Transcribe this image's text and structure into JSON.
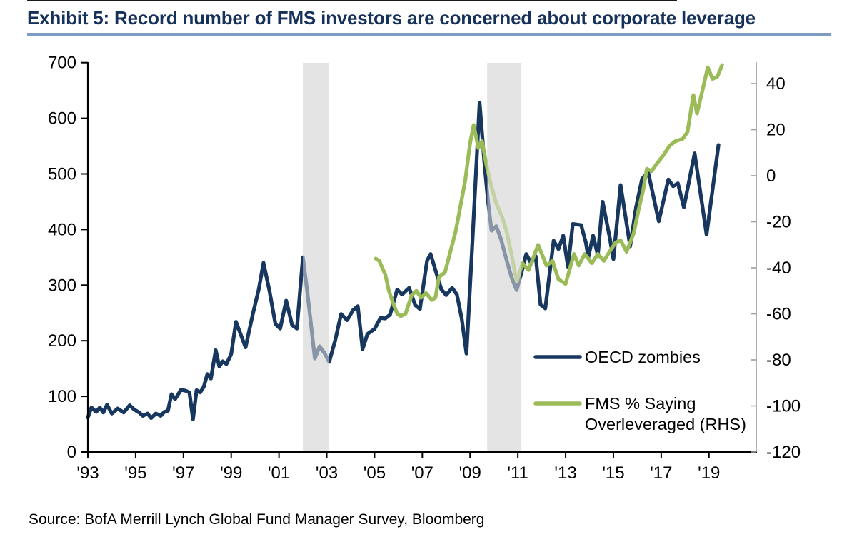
{
  "page": {
    "title": "Exhibit 5: Record number of FMS investors are concerned about corporate leverage",
    "source": "Source: BofA Merrill Lynch Global Fund Manager Survey, Bloomberg",
    "colors": {
      "background": "#FFFFFF",
      "title_text": "#17325A",
      "title_underline": "#7C9CC4",
      "top_rule": "#1A1A1A"
    }
  },
  "chart_data": {
    "type": "line",
    "title": "Exhibit 5: Record number of FMS investors are concerned about corporate leverage",
    "x_axis": {
      "range": [
        1993,
        2020.98
      ],
      "ticks": [
        {
          "year": 1993,
          "label": "'93"
        },
        {
          "year": 1995,
          "label": "'95"
        },
        {
          "year": 1997,
          "label": "'97"
        },
        {
          "year": 1999,
          "label": "'99"
        },
        {
          "year": 2001,
          "label": "'01"
        },
        {
          "year": 2003,
          "label": "'03"
        },
        {
          "year": 2005,
          "label": "'05"
        },
        {
          "year": 2007,
          "label": "'07"
        },
        {
          "year": 2009,
          "label": "'09"
        },
        {
          "year": 2011,
          "label": "'11"
        },
        {
          "year": 2013,
          "label": "'13"
        },
        {
          "year": 2015,
          "label": "'15"
        },
        {
          "year": 2017,
          "label": "'17"
        },
        {
          "year": 2019,
          "label": "'19"
        }
      ]
    },
    "left_axis": {
      "range": [
        0,
        700
      ],
      "ticks": [
        700,
        600,
        500,
        400,
        300,
        200,
        100,
        0
      ]
    },
    "right_axis": {
      "range": [
        -120,
        40
      ],
      "ticks": [
        40,
        20,
        0,
        -20,
        -40,
        -60,
        -80,
        -100,
        -120
      ]
    },
    "grid": false,
    "recession_bands": [
      {
        "from_year": 2002.0,
        "to_year": 2003.1
      },
      {
        "from_year": 2009.72,
        "to_year": 2011.15
      }
    ],
    "band_color": "#E4E4E4",
    "band_overlay_opacity": 0.55,
    "axis_colors": {
      "left": "#000000",
      "bottom": "#000000",
      "right": "#9C9C9C",
      "labels": "#000000"
    },
    "series": [
      {
        "id": "oecd-zombies",
        "name": "OECD zombies",
        "axis": "left",
        "color": "#17375E",
        "points": [
          [
            1993.0,
            62
          ],
          [
            1993.15,
            80
          ],
          [
            1993.35,
            72
          ],
          [
            1993.5,
            80
          ],
          [
            1993.65,
            71
          ],
          [
            1993.8,
            85
          ],
          [
            1994.0,
            69
          ],
          [
            1994.25,
            78
          ],
          [
            1994.5,
            71
          ],
          [
            1994.75,
            84
          ],
          [
            1994.95,
            76
          ],
          [
            1995.15,
            71
          ],
          [
            1995.3,
            65
          ],
          [
            1995.5,
            69
          ],
          [
            1995.65,
            61
          ],
          [
            1995.85,
            69
          ],
          [
            1996.05,
            65
          ],
          [
            1996.2,
            72
          ],
          [
            1996.35,
            74
          ],
          [
            1996.5,
            104
          ],
          [
            1996.65,
            95
          ],
          [
            1996.9,
            112
          ],
          [
            1997.1,
            110
          ],
          [
            1997.25,
            107
          ],
          [
            1997.4,
            59
          ],
          [
            1997.55,
            111
          ],
          [
            1997.7,
            107
          ],
          [
            1997.85,
            117
          ],
          [
            1998.0,
            140
          ],
          [
            1998.15,
            132
          ],
          [
            1998.35,
            183
          ],
          [
            1998.5,
            154
          ],
          [
            1998.65,
            163
          ],
          [
            1998.8,
            158
          ],
          [
            1999.0,
            176
          ],
          [
            1999.2,
            234
          ],
          [
            1999.4,
            211
          ],
          [
            1999.6,
            188
          ],
          [
            1999.9,
            247
          ],
          [
            2000.15,
            292
          ],
          [
            2000.35,
            340
          ],
          [
            2000.6,
            290
          ],
          [
            2000.85,
            230
          ],
          [
            2001.05,
            222
          ],
          [
            2001.3,
            272
          ],
          [
            2001.55,
            228
          ],
          [
            2001.75,
            222
          ],
          [
            2002.0,
            350
          ],
          [
            2002.2,
            282
          ],
          [
            2002.5,
            168
          ],
          [
            2002.7,
            190
          ],
          [
            2002.9,
            178
          ],
          [
            2003.1,
            162
          ],
          [
            2003.35,
            200
          ],
          [
            2003.6,
            248
          ],
          [
            2003.85,
            237
          ],
          [
            2004.1,
            255
          ],
          [
            2004.3,
            262
          ],
          [
            2004.5,
            185
          ],
          [
            2004.7,
            212
          ],
          [
            2005.0,
            221
          ],
          [
            2005.25,
            241
          ],
          [
            2005.45,
            240
          ],
          [
            2005.65,
            247
          ],
          [
            2005.95,
            292
          ],
          [
            2006.15,
            283
          ],
          [
            2006.45,
            295
          ],
          [
            2006.7,
            264
          ],
          [
            2006.9,
            257
          ],
          [
            2007.2,
            344
          ],
          [
            2007.35,
            356
          ],
          [
            2007.6,
            320
          ],
          [
            2007.8,
            292
          ],
          [
            2008.0,
            282
          ],
          [
            2008.25,
            295
          ],
          [
            2008.45,
            283
          ],
          [
            2008.65,
            240
          ],
          [
            2008.85,
            177
          ],
          [
            2009.1,
            380
          ],
          [
            2009.4,
            628
          ],
          [
            2009.6,
            520
          ],
          [
            2009.75,
            452
          ],
          [
            2009.9,
            398
          ],
          [
            2010.1,
            406
          ],
          [
            2010.3,
            382
          ],
          [
            2010.55,
            342
          ],
          [
            2010.75,
            312
          ],
          [
            2010.95,
            291
          ],
          [
            2011.15,
            322
          ],
          [
            2011.35,
            356
          ],
          [
            2011.55,
            340
          ],
          [
            2011.75,
            352
          ],
          [
            2011.95,
            265
          ],
          [
            2012.15,
            258
          ],
          [
            2012.5,
            380
          ],
          [
            2012.7,
            365
          ],
          [
            2012.9,
            389
          ],
          [
            2013.1,
            333
          ],
          [
            2013.3,
            410
          ],
          [
            2013.65,
            408
          ],
          [
            2013.85,
            376
          ],
          [
            2013.95,
            350
          ],
          [
            2014.15,
            389
          ],
          [
            2014.35,
            354
          ],
          [
            2014.55,
            450
          ],
          [
            2014.85,
            385
          ],
          [
            2015.0,
            347
          ],
          [
            2015.3,
            480
          ],
          [
            2015.7,
            370
          ],
          [
            2015.95,
            440
          ],
          [
            2016.2,
            491
          ],
          [
            2016.45,
            504
          ],
          [
            2016.9,
            415
          ],
          [
            2017.3,
            490
          ],
          [
            2017.5,
            478
          ],
          [
            2017.7,
            483
          ],
          [
            2017.95,
            440
          ],
          [
            2018.4,
            537
          ],
          [
            2018.9,
            391
          ],
          [
            2019.4,
            552
          ]
        ]
      },
      {
        "id": "fms-overleveraged",
        "name": "FMS % Saying Overleveraged (RHS)",
        "axis": "right",
        "color": "#9BBB59",
        "points": [
          [
            2005.05,
            -36
          ],
          [
            2005.2,
            -37
          ],
          [
            2005.45,
            -43
          ],
          [
            2005.6,
            -50
          ],
          [
            2005.8,
            -56
          ],
          [
            2005.95,
            -60
          ],
          [
            2006.1,
            -61
          ],
          [
            2006.3,
            -60
          ],
          [
            2006.55,
            -52
          ],
          [
            2006.75,
            -50
          ],
          [
            2006.95,
            -53
          ],
          [
            2007.15,
            -51
          ],
          [
            2007.4,
            -54
          ],
          [
            2007.55,
            -53
          ],
          [
            2007.7,
            -44
          ],
          [
            2007.95,
            -42
          ],
          [
            2008.15,
            -34
          ],
          [
            2008.4,
            -24
          ],
          [
            2008.6,
            -13
          ],
          [
            2008.8,
            -2
          ],
          [
            2009.0,
            14
          ],
          [
            2009.15,
            22
          ],
          [
            2009.35,
            12
          ],
          [
            2009.5,
            15
          ],
          [
            2009.7,
            4
          ],
          [
            2009.9,
            -5
          ],
          [
            2010.1,
            -12
          ],
          [
            2010.35,
            -18
          ],
          [
            2010.55,
            -25
          ],
          [
            2010.75,
            -35
          ],
          [
            2010.95,
            -46
          ],
          [
            2011.2,
            -38
          ],
          [
            2011.45,
            -41
          ],
          [
            2011.85,
            -30
          ],
          [
            2012.2,
            -39
          ],
          [
            2012.45,
            -37
          ],
          [
            2012.7,
            -45
          ],
          [
            2013.0,
            -47
          ],
          [
            2013.35,
            -34
          ],
          [
            2013.55,
            -39
          ],
          [
            2013.8,
            -34
          ],
          [
            2014.1,
            -38
          ],
          [
            2014.35,
            -34
          ],
          [
            2014.6,
            -37
          ],
          [
            2014.9,
            -32
          ],
          [
            2015.1,
            -29
          ],
          [
            2015.3,
            -28
          ],
          [
            2015.55,
            -33
          ],
          [
            2015.85,
            -25
          ],
          [
            2016.05,
            -15
          ],
          [
            2016.25,
            -6
          ],
          [
            2016.4,
            3
          ],
          [
            2016.6,
            2
          ],
          [
            2016.8,
            5
          ],
          [
            2017.1,
            9
          ],
          [
            2017.35,
            13
          ],
          [
            2017.6,
            15
          ],
          [
            2017.9,
            16
          ],
          [
            2018.1,
            19
          ],
          [
            2018.35,
            35
          ],
          [
            2018.5,
            27
          ],
          [
            2018.75,
            38
          ],
          [
            2018.95,
            47
          ],
          [
            2019.15,
            42
          ],
          [
            2019.35,
            43
          ],
          [
            2019.55,
            48
          ]
        ]
      }
    ],
    "legend": [
      {
        "series": "oecd-zombies",
        "color": "#17375E",
        "lines": [
          "OECD zombies"
        ]
      },
      {
        "series": "fms-overleveraged",
        "color": "#9BBB59",
        "lines": [
          "FMS % Saying",
          "Overleveraged (RHS)"
        ]
      }
    ],
    "legend_position": "inside-right-lower"
  }
}
